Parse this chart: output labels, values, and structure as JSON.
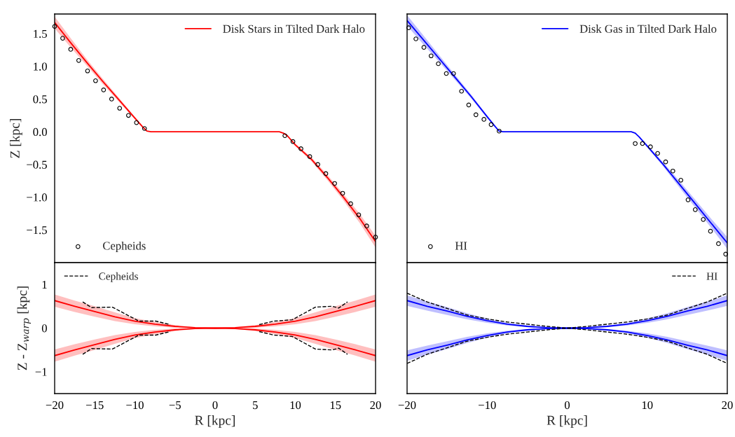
{
  "chart_data": [
    {
      "type": "line",
      "ylabel": "Z [kpc]",
      "xlim": [
        -20,
        20
      ],
      "ylim": [
        -2.0,
        1.8
      ],
      "yticks": [
        -1.5,
        {
          "value": -1,
          "label": "−1.0"
        },
        -0.5,
        {
          "value": 0,
          "label": "0.0"
        },
        0.5,
        {
          "value": 1,
          "label": "1.0"
        },
        1.5
      ],
      "tick_labels": "y",
      "legend": "top right",
      "grid": false,
      "series": [
        {
          "name": "Disk Stars in Tilted Dark Halo",
          "color": "#ff0000",
          "x": [
            -20,
            -18,
            -16,
            -14,
            -12,
            -10,
            -9,
            -8.5,
            -8,
            8,
            8.5,
            9,
            10,
            12,
            14,
            16,
            18,
            20
          ],
          "values": [
            1.67,
            1.36,
            1.06,
            0.77,
            0.49,
            0.21,
            0.07,
            0.01,
            0,
            0,
            -0.02,
            -0.06,
            -0.2,
            -0.42,
            -0.7,
            -1.0,
            -1.32,
            -1.68
          ],
          "lower": [
            1.58,
            1.29,
            1.01,
            0.73,
            0.46,
            0.19,
            0.06,
            0.01,
            0,
            0,
            -0.02,
            -0.07,
            -0.22,
            -0.45,
            -0.74,
            -1.05,
            -1.39,
            -1.77
          ],
          "upper": [
            1.76,
            1.43,
            1.11,
            0.81,
            0.52,
            0.23,
            0.08,
            0.01,
            0,
            0,
            -0.02,
            -0.05,
            -0.18,
            -0.39,
            -0.66,
            -0.95,
            -1.25,
            -1.59
          ]
        },
        {
          "name": "Cepheids",
          "type": "scatter",
          "marker": "circle",
          "color": "#000000",
          "x": [
            -20.0,
            -19.0,
            -18.0,
            -17.0,
            -15.9,
            -14.9,
            -13.9,
            -12.9,
            -11.9,
            -10.8,
            -9.8,
            -8.8,
            8.7,
            9.7,
            10.7,
            11.8,
            12.8,
            13.8,
            14.9,
            15.9,
            16.9,
            17.9,
            18.9,
            20.0
          ],
          "values": [
            1.61,
            1.43,
            1.26,
            1.09,
            0.93,
            0.78,
            0.64,
            0.5,
            0.36,
            0.25,
            0.14,
            0.05,
            -0.06,
            -0.15,
            -0.26,
            -0.38,
            -0.5,
            -0.64,
            -0.79,
            -0.94,
            -1.1,
            -1.27,
            -1.44,
            -1.61
          ]
        }
      ]
    },
    {
      "type": "line",
      "xlim": [
        -20,
        20
      ],
      "ylim": [
        -2.0,
        1.8
      ],
      "tick_labels": false,
      "legend": "top right",
      "grid": false,
      "series": [
        {
          "name": "Disk Gas in Tilted Dark Halo",
          "color": "#0000ff",
          "x": [
            -20,
            -18,
            -16,
            -14,
            -12,
            -10,
            -9,
            -8.5,
            -8,
            8,
            8.5,
            9,
            10,
            12,
            14,
            16,
            18,
            20
          ],
          "values": [
            1.7,
            1.41,
            1.12,
            0.83,
            0.54,
            0.23,
            0.08,
            0.01,
            0,
            0,
            -0.02,
            -0.08,
            -0.22,
            -0.5,
            -0.8,
            -1.1,
            -1.4,
            -1.7
          ],
          "lower": [
            1.62,
            1.34,
            1.07,
            0.79,
            0.51,
            0.21,
            0.07,
            0.01,
            0,
            0,
            -0.02,
            -0.09,
            -0.24,
            -0.53,
            -0.85,
            -1.16,
            -1.47,
            -1.79
          ],
          "upper": [
            1.78,
            1.48,
            1.17,
            0.87,
            0.57,
            0.25,
            0.09,
            0.01,
            0,
            0,
            -0.02,
            -0.07,
            -0.2,
            -0.47,
            -0.75,
            -1.04,
            -1.33,
            -1.61
          ]
        },
        {
          "name": "HI",
          "type": "scatter",
          "marker": "circle",
          "color": "#000000",
          "x": [
            -19.8,
            -18.9,
            -17.9,
            -17.0,
            -16.1,
            -15.1,
            -14.2,
            -13.2,
            -12.3,
            -11.4,
            -10.4,
            -9.5,
            -8.5,
            8.5,
            9.4,
            10.4,
            11.3,
            12.3,
            13.2,
            14.2,
            15.1,
            16.0,
            17.0,
            17.9,
            18.9,
            19.8
          ],
          "values": [
            1.59,
            1.42,
            1.29,
            1.16,
            1.04,
            0.89,
            0.89,
            0.62,
            0.41,
            0.26,
            0.19,
            0.11,
            0.01,
            -0.18,
            -0.18,
            -0.23,
            -0.33,
            -0.46,
            -0.6,
            -0.74,
            -1.04,
            -1.19,
            -1.34,
            -1.52,
            -1.71,
            -1.87
          ]
        }
      ]
    },
    {
      "type": "line",
      "xlabel": "R [kpc]",
      "ylabel": "Z - Z$_{warp}$ [kpc]",
      "xlim": [
        -20,
        20
      ],
      "xticks": [
        -20,
        -15,
        -10,
        -5,
        0,
        5,
        10,
        15,
        20
      ],
      "ylim": [
        -1.5,
        1.5
      ],
      "yticks": [
        -1,
        0,
        1
      ],
      "legend": "top left",
      "grid": false,
      "series": [
        {
          "color": "#ff0000",
          "x": [
            -20,
            -17.5,
            -15,
            -12.5,
            -10,
            -7.5,
            -5,
            -2.5,
            0,
            2.5,
            5,
            7.5,
            10,
            12.5,
            15,
            17.5,
            20
          ],
          "values": [
            0.63,
            0.5,
            0.38,
            0.26,
            0.16,
            0.09,
            0.04,
            0.01,
            0,
            0.01,
            0.04,
            0.09,
            0.16,
            0.26,
            0.38,
            0.5,
            0.63
          ],
          "lower": [
            0.49,
            0.37,
            0.26,
            0.16,
            0.09,
            0.04,
            0.01,
            0,
            0,
            0,
            0.01,
            0.04,
            0.09,
            0.16,
            0.26,
            0.37,
            0.49
          ],
          "upper": [
            0.77,
            0.63,
            0.5,
            0.36,
            0.23,
            0.14,
            0.07,
            0.02,
            0,
            0.02,
            0.07,
            0.14,
            0.23,
            0.36,
            0.5,
            0.63,
            0.77
          ]
        },
        {
          "color": "#ff0000",
          "x": [
            -20,
            -17.5,
            -15,
            -12.5,
            -10,
            -7.5,
            -5,
            -2.5,
            0,
            2.5,
            5,
            7.5,
            10,
            12.5,
            15,
            17.5,
            20
          ],
          "values": [
            -0.63,
            -0.5,
            -0.38,
            -0.26,
            -0.16,
            -0.09,
            -0.04,
            -0.01,
            0,
            -0.01,
            -0.04,
            -0.09,
            -0.16,
            -0.26,
            -0.38,
            -0.5,
            -0.63
          ],
          "lower": [
            -0.77,
            -0.63,
            -0.5,
            -0.36,
            -0.23,
            -0.14,
            -0.07,
            -0.02,
            0,
            -0.02,
            -0.07,
            -0.14,
            -0.23,
            -0.36,
            -0.5,
            -0.63,
            -0.77
          ],
          "upper": [
            -0.49,
            -0.37,
            -0.26,
            -0.16,
            -0.09,
            -0.04,
            -0.01,
            0,
            0,
            0,
            -0.01,
            -0.04,
            -0.09,
            -0.16,
            -0.26,
            -0.37,
            -0.49
          ]
        },
        {
          "name": "Cepheids",
          "color": "#000000",
          "line_style": "dashed",
          "x": [
            -16.5,
            -15.4,
            -12.8,
            -9.5,
            -7.4,
            -5.6,
            0,
            5.5,
            7.3,
            9.6,
            12.5,
            14.6,
            15.4,
            16.5
          ],
          "values": [
            0.6,
            0.47,
            0.48,
            0.16,
            0.16,
            0.08,
            null,
            0.08,
            0.16,
            0.19,
            0.48,
            0.5,
            0.46,
            0.6
          ]
        },
        {
          "color": "#000000",
          "line_style": "dashed",
          "x": [
            -16.5,
            -15.4,
            -12.8,
            -9.5,
            -7.4,
            -5.6,
            0,
            5.5,
            7.3,
            9.6,
            12.5,
            14.6,
            15.4,
            16.5
          ],
          "values": [
            -0.6,
            -0.47,
            -0.48,
            -0.16,
            -0.16,
            -0.08,
            null,
            -0.08,
            -0.16,
            -0.19,
            -0.48,
            -0.5,
            -0.46,
            -0.6
          ]
        }
      ]
    },
    {
      "type": "line",
      "xlabel": "R [kpc]",
      "xlim": [
        -20,
        20
      ],
      "xticks": [
        -20,
        -10,
        0,
        10,
        20
      ],
      "ylim": [
        -1.5,
        1.5
      ],
      "tick_labels": "x",
      "legend": "top right",
      "grid": false,
      "series": [
        {
          "color": "#0000ff",
          "x": [
            -20,
            -17.5,
            -15,
            -12.5,
            -10,
            -7.5,
            -5,
            -2.5,
            0,
            2.5,
            5,
            7.5,
            10,
            12.5,
            15,
            17.5,
            20
          ],
          "values": [
            0.63,
            0.5,
            0.39,
            0.27,
            0.17,
            0.09,
            0.04,
            0.01,
            0,
            0.01,
            0.04,
            0.09,
            0.17,
            0.27,
            0.39,
            0.5,
            0.63
          ],
          "lower": [
            0.51,
            0.4,
            0.3,
            0.2,
            0.12,
            0.06,
            0.02,
            0,
            0,
            0,
            0.02,
            0.06,
            0.12,
            0.2,
            0.3,
            0.4,
            0.51
          ],
          "upper": [
            0.75,
            0.61,
            0.48,
            0.34,
            0.22,
            0.12,
            0.06,
            0.02,
            0,
            0.02,
            0.06,
            0.12,
            0.22,
            0.34,
            0.48,
            0.61,
            0.75
          ]
        },
        {
          "color": "#0000ff",
          "x": [
            -20,
            -17.5,
            -15,
            -12.5,
            -10,
            -7.5,
            -5,
            -2.5,
            0,
            2.5,
            5,
            7.5,
            10,
            12.5,
            15,
            17.5,
            20
          ],
          "values": [
            -0.63,
            -0.5,
            -0.39,
            -0.27,
            -0.17,
            -0.09,
            -0.04,
            -0.01,
            0,
            -0.01,
            -0.04,
            -0.09,
            -0.17,
            -0.27,
            -0.39,
            -0.5,
            -0.63
          ],
          "lower": [
            -0.75,
            -0.61,
            -0.48,
            -0.34,
            -0.22,
            -0.12,
            -0.06,
            -0.02,
            0,
            -0.02,
            -0.06,
            -0.12,
            -0.22,
            -0.34,
            -0.48,
            -0.61,
            -0.75
          ],
          "upper": [
            -0.51,
            -0.4,
            -0.3,
            -0.2,
            -0.12,
            -0.06,
            -0.02,
            0,
            0,
            0,
            -0.02,
            -0.06,
            -0.12,
            -0.2,
            -0.3,
            -0.4,
            -0.51
          ]
        },
        {
          "name": "HI",
          "color": "#000000",
          "line_style": "dashed",
          "x": [
            -20,
            -17.5,
            -15,
            -12.5,
            -10,
            -7.5,
            -5,
            -2.5,
            0,
            2.5,
            5,
            7.5,
            10,
            12.5,
            15,
            17.5,
            20
          ],
          "values": [
            0.8,
            0.6,
            0.45,
            0.3,
            0.21,
            0.14,
            0.09,
            0.04,
            0,
            0.04,
            0.09,
            0.14,
            0.21,
            0.3,
            0.45,
            0.6,
            0.8
          ]
        },
        {
          "color": "#000000",
          "line_style": "dashed",
          "x": [
            -20,
            -17.5,
            -15,
            -12.5,
            -10,
            -7.5,
            -5,
            -2.5,
            0,
            2.5,
            5,
            7.5,
            10,
            12.5,
            15,
            17.5,
            20
          ],
          "values": [
            -0.81,
            -0.6,
            -0.45,
            -0.3,
            -0.21,
            -0.14,
            -0.09,
            -0.04,
            0,
            -0.04,
            -0.09,
            -0.14,
            -0.21,
            -0.3,
            -0.45,
            -0.6,
            -0.81
          ]
        }
      ]
    }
  ]
}
